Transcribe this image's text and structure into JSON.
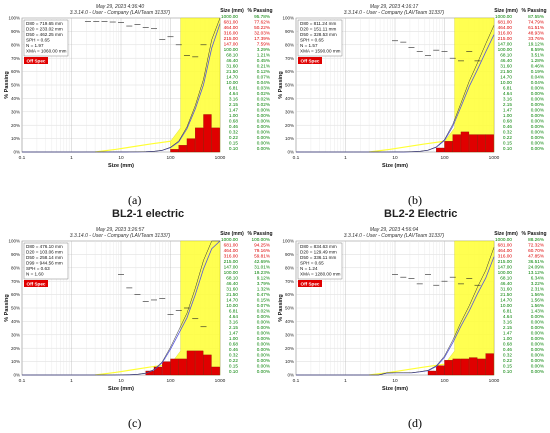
{
  "headings": [
    "",
    "",
    "BL2-1 electric",
    "BL2-2 Electric"
  ],
  "captions": [
    "(a)",
    "(b)",
    "(c)",
    "(d)"
  ],
  "colors": {
    "yellow": "#ffff33",
    "red": "#e00000",
    "green": "#008000",
    "red_text": "#dd0000",
    "blue_line": "#5555dd",
    "pink": "#f08080"
  },
  "chart_data": [
    {
      "type": "bar",
      "date": "May 29, 2023 4:36:40",
      "subtitle": "3.3.14.0 - User - Company (LAVTeam 31337)",
      "ylabel": "% Passing",
      "xlabel": "Size (mm)",
      "x_scale": "log",
      "xlim": [
        0.1,
        1000
      ],
      "ylim": [
        0,
        100
      ],
      "x_ticks": [
        "0.1",
        "1",
        "10",
        "100",
        "1000"
      ],
      "y_ticks": [
        "0%",
        "10%",
        "20%",
        "30%",
        "40%",
        "50%",
        "60%",
        "70%",
        "80%",
        "90%",
        "100%"
      ],
      "stats": [
        "D80 = 719.65 mm",
        "D20 = 233.02 mm",
        "D50 = 462.25 mm",
        "SPH = 0.65",
        "N = 1.97",
        "XMA = 1060.00 mm"
      ],
      "off_spec_label": "Off Spec",
      "table_headers": [
        "Size (mm)",
        "% Passing"
      ],
      "table": [
        [
          "1000.00",
          "95.78%"
        ],
        [
          "681.00",
          "77.62%"
        ],
        [
          "464.00",
          "50.22%"
        ],
        [
          "316.00",
          "32.03%"
        ],
        [
          "215.00",
          "17.39%"
        ],
        [
          "147.00",
          "7.59%"
        ],
        [
          "100.00",
          "3.29%"
        ],
        [
          "68.10",
          "1.21%"
        ],
        [
          "46.40",
          "0.45%"
        ],
        [
          "31.60",
          "0.21%"
        ],
        [
          "21.50",
          "0.12%"
        ],
        [
          "14.70",
          "0.07%"
        ],
        [
          "10.00",
          "0.04%"
        ],
        [
          "6.81",
          "0.03%"
        ],
        [
          "4.64",
          "0.02%"
        ],
        [
          "3.16",
          "0.02%"
        ],
        [
          "2.15",
          "0.02%"
        ],
        [
          "1.47",
          "0.00%"
        ],
        [
          "1.00",
          "0.00%"
        ],
        [
          "0.68",
          "0.00%"
        ],
        [
          "0.46",
          "0.00%"
        ],
        [
          "0.32",
          "0.00%"
        ],
        [
          "0.22",
          "0.00%"
        ],
        [
          "0.15",
          "0.00%"
        ],
        [
          "0.10",
          "0.00%"
        ]
      ],
      "red_row_count": 6,
      "fraction_bars": [
        [
          100,
          147,
          2
        ],
        [
          147,
          215,
          5
        ],
        [
          215,
          316,
          10
        ],
        [
          316,
          464,
          18
        ],
        [
          464,
          681,
          28
        ],
        [
          681,
          1000,
          18
        ]
      ],
      "markers": [
        [
          2.15,
          97.5
        ],
        [
          3.16,
          97.5
        ],
        [
          4.64,
          97.5
        ],
        [
          6.81,
          97
        ],
        [
          10,
          96.5
        ],
        [
          14.7,
          94
        ],
        [
          21.5,
          95
        ],
        [
          31.6,
          93
        ],
        [
          46.4,
          92
        ],
        [
          68.1,
          84
        ],
        [
          100,
          86
        ],
        [
          147,
          80
        ],
        [
          215,
          72
        ],
        [
          316,
          71
        ],
        [
          464,
          80
        ]
      ]
    },
    {
      "type": "bar",
      "date": "May 29, 2023 4:16:17",
      "subtitle": "3.3.14.0 - User - Company (LAVTeam 31337)",
      "ylabel": "% Passing",
      "xlabel": "Size (mm)",
      "x_scale": "log",
      "xlim": [
        0.1,
        1000
      ],
      "ylim": [
        0,
        100
      ],
      "x_ticks": [
        "0.1",
        "1",
        "10",
        "100",
        "1000"
      ],
      "y_ticks": [
        "0%",
        "10%",
        "20%",
        "30%",
        "40%",
        "50%",
        "60%",
        "70%",
        "80%",
        "90%",
        "100%"
      ],
      "stats": [
        "D80 = 811.24 mm",
        "D20 = 151.11 mm",
        "D50 = 328.53 mm",
        "SPH = 0.65",
        "N = 1.57",
        "XMA = 1590.00 mm"
      ],
      "off_spec_label": "Off Spec",
      "table_headers": [
        "Size (mm)",
        "% Passing"
      ],
      "table": [
        [
          "1000.00",
          "87.55%"
        ],
        [
          "681.00",
          "74.79%"
        ],
        [
          "464.00",
          "61.51%"
        ],
        [
          "316.00",
          "48.93%"
        ],
        [
          "215.00",
          "33.76%"
        ],
        [
          "147.00",
          "19.12%"
        ],
        [
          "100.00",
          "8.59%"
        ],
        [
          "68.10",
          "3.51%"
        ],
        [
          "46.40",
          "1.28%"
        ],
        [
          "31.60",
          "0.46%"
        ],
        [
          "21.50",
          "0.19%"
        ],
        [
          "14.70",
          "0.04%"
        ],
        [
          "10.00",
          "0.04%"
        ],
        [
          "6.81",
          "0.00%"
        ],
        [
          "4.64",
          "0.00%"
        ],
        [
          "3.16",
          "0.00%"
        ],
        [
          "2.15",
          "0.00%"
        ],
        [
          "1.47",
          "0.00%"
        ],
        [
          "1.00",
          "0.00%"
        ],
        [
          "0.68",
          "0.00%"
        ],
        [
          "0.46",
          "0.00%"
        ],
        [
          "0.32",
          "0.00%"
        ],
        [
          "0.22",
          "0.00%"
        ],
        [
          "0.15",
          "0.00%"
        ],
        [
          "0.10",
          "0.00%"
        ]
      ],
      "red_row_count": 5,
      "fraction_bars": [
        [
          68.1,
          100,
          3
        ],
        [
          100,
          147,
          8
        ],
        [
          147,
          215,
          13
        ],
        [
          215,
          316,
          15
        ],
        [
          316,
          464,
          13
        ],
        [
          464,
          681,
          13
        ],
        [
          681,
          1000,
          13
        ]
      ],
      "markers": [
        [
          10,
          83
        ],
        [
          14.7,
          82
        ],
        [
          21.5,
          78
        ],
        [
          31.6,
          75
        ],
        [
          46.4,
          72
        ],
        [
          68.1,
          76
        ],
        [
          100,
          75
        ],
        [
          147,
          70
        ],
        [
          215,
          68
        ],
        [
          316,
          75
        ],
        [
          464,
          68
        ]
      ]
    },
    {
      "type": "bar",
      "date": "May 29, 2023 3:26:57",
      "subtitle": "3.3.14.0 - User - Company (LAVTeam 31337)",
      "ylabel": "% Passing",
      "xlabel": "Size (mm)",
      "x_scale": "log",
      "xlim": [
        0.1,
        1000
      ],
      "ylim": [
        0,
        100
      ],
      "x_ticks": [
        "0.1",
        "1",
        "10",
        "100",
        "1000"
      ],
      "y_ticks": [
        "0%",
        "10%",
        "20%",
        "30%",
        "40%",
        "50%",
        "60%",
        "70%",
        "80%",
        "90%",
        "100%"
      ],
      "stats": [
        "D80 = 476.10 mm",
        "D20 = 103.06 mm",
        "D50 = 258.14 mm",
        "D99 = 944.56 mm",
        "SPH = 0.63",
        "N = 1.60"
      ],
      "off_spec_label": "Off Spec",
      "table_headers": [
        "Size (mm)",
        "% Passing"
      ],
      "table": [
        [
          "1000.00",
          "100.00%"
        ],
        [
          "681.00",
          "94.25%"
        ],
        [
          "464.00",
          "79.16%"
        ],
        [
          "316.00",
          "59.81%"
        ],
        [
          "215.00",
          "42.69%"
        ],
        [
          "147.00",
          "31.01%"
        ],
        [
          "100.00",
          "19.23%"
        ],
        [
          "68.10",
          "9.12%"
        ],
        [
          "46.40",
          "3.79%"
        ],
        [
          "31.60",
          "1.32%"
        ],
        [
          "21.50",
          "0.47%"
        ],
        [
          "14.70",
          "0.15%"
        ],
        [
          "10.00",
          "0.07%"
        ],
        [
          "6.81",
          "0.02%"
        ],
        [
          "4.64",
          "0.00%"
        ],
        [
          "3.16",
          "0.00%"
        ],
        [
          "2.15",
          "0.00%"
        ],
        [
          "1.47",
          "0.00%"
        ],
        [
          "1.00",
          "0.00%"
        ],
        [
          "0.68",
          "0.00%"
        ],
        [
          "0.46",
          "0.00%"
        ],
        [
          "0.32",
          "0.00%"
        ],
        [
          "0.22",
          "0.00%"
        ],
        [
          "0.15",
          "0.00%"
        ],
        [
          "0.10",
          "0.00%"
        ]
      ],
      "red_row_count": 4,
      "fraction_bars": [
        [
          31.6,
          46.4,
          3
        ],
        [
          46.4,
          68.1,
          6
        ],
        [
          68.1,
          100,
          10
        ],
        [
          100,
          147,
          12
        ],
        [
          147,
          215,
          12
        ],
        [
          215,
          316,
          18
        ],
        [
          316,
          464,
          18
        ],
        [
          464,
          681,
          15
        ],
        [
          681,
          1000,
          6
        ]
      ],
      "markers": [
        [
          10,
          75
        ],
        [
          14.7,
          65
        ],
        [
          21.5,
          60
        ],
        [
          31.6,
          55
        ],
        [
          46.4,
          56
        ],
        [
          68.1,
          57
        ],
        [
          100,
          45
        ],
        [
          147,
          48
        ],
        [
          215,
          50
        ],
        [
          316,
          42
        ],
        [
          464,
          36
        ]
      ]
    },
    {
      "type": "bar",
      "date": "May 29, 2023 4:56:04",
      "subtitle": "3.3.14.0 - User - Company (LAVTeam 31337)",
      "ylabel": "% Passing",
      "xlabel": "Size (mm)",
      "x_scale": "log",
      "xlim": [
        0.1,
        1000
      ],
      "ylim": [
        0,
        100
      ],
      "x_ticks": [
        "0.1",
        "1",
        "10",
        "100",
        "1000"
      ],
      "y_ticks": [
        "0%",
        "10%",
        "20%",
        "30%",
        "40%",
        "50%",
        "60%",
        "70%",
        "80%",
        "90%",
        "100%"
      ],
      "stats": [
        "D80 = 834.63 mm",
        "D20 = 129.49 mm",
        "D50 = 336.11 mm",
        "SPH = 0.65",
        "N = 1.24",
        "XMA = 1280.00 mm"
      ],
      "off_spec_label": "Off Spec",
      "table_headers": [
        "Size (mm)",
        "% Passing"
      ],
      "table": [
        [
          "1000.00",
          "88.26%"
        ],
        [
          "681.00",
          "72.32%"
        ],
        [
          "464.00",
          "60.70%"
        ],
        [
          "316.00",
          "47.85%"
        ],
        [
          "215.00",
          "36.51%"
        ],
        [
          "147.00",
          "24.09%"
        ],
        [
          "100.00",
          "13.12%"
        ],
        [
          "68.10",
          "6.34%"
        ],
        [
          "46.40",
          "3.22%"
        ],
        [
          "31.60",
          "2.31%"
        ],
        [
          "21.50",
          "1.56%"
        ],
        [
          "14.70",
          "1.56%"
        ],
        [
          "10.00",
          "1.56%"
        ],
        [
          "6.81",
          "1.43%"
        ],
        [
          "4.64",
          "0.00%"
        ],
        [
          "3.16",
          "0.00%"
        ],
        [
          "2.15",
          "0.00%"
        ],
        [
          "1.47",
          "0.00%"
        ],
        [
          "1.00",
          "0.00%"
        ],
        [
          "0.68",
          "0.00%"
        ],
        [
          "0.46",
          "0.00%"
        ],
        [
          "0.32",
          "0.00%"
        ],
        [
          "0.22",
          "0.00%"
        ],
        [
          "0.15",
          "0.00%"
        ],
        [
          "0.10",
          "0.00%"
        ]
      ],
      "red_row_count": 4,
      "fraction_bars": [
        [
          46.4,
          68.1,
          3
        ],
        [
          68.1,
          100,
          7
        ],
        [
          100,
          147,
          11
        ],
        [
          147,
          215,
          12
        ],
        [
          215,
          316,
          12
        ],
        [
          316,
          464,
          13
        ],
        [
          464,
          681,
          12
        ],
        [
          681,
          1000,
          16
        ]
      ],
      "markers": [
        [
          10,
          75
        ],
        [
          14.7,
          73
        ],
        [
          21.5,
          72
        ],
        [
          31.6,
          68
        ],
        [
          46.4,
          75
        ],
        [
          68.1,
          67
        ],
        [
          100,
          70
        ],
        [
          147,
          73
        ],
        [
          215,
          68
        ],
        [
          316,
          72
        ],
        [
          464,
          67
        ]
      ]
    }
  ]
}
